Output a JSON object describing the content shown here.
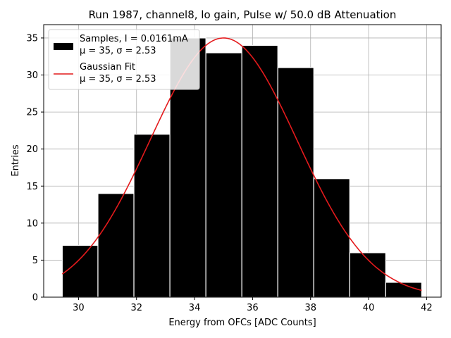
{
  "chart_data": {
    "type": "bar",
    "title": "Run 1987, channel8, lo gain, Pulse w/ 50.0 dB Attenuation",
    "xlabel": "Energy from OFCs [ADC Counts]",
    "ylabel": "Entries",
    "xlim": [
      28.8,
      42.5
    ],
    "ylim": [
      0,
      36.8
    ],
    "xticks": [
      30,
      32,
      34,
      36,
      38,
      40,
      42
    ],
    "yticks": [
      0,
      5,
      10,
      15,
      20,
      25,
      30,
      35
    ],
    "xtick_labels": [
      "30",
      "32",
      "34",
      "36",
      "38",
      "40",
      "42"
    ],
    "ytick_labels": [
      "0",
      "5",
      "10",
      "15",
      "20",
      "25",
      "30",
      "35"
    ],
    "grid": true,
    "legend_position": "top-left",
    "bins": [
      {
        "x0": 29.44,
        "x1": 30.67,
        "count": 7
      },
      {
        "x0": 30.67,
        "x1": 31.91,
        "count": 14
      },
      {
        "x0": 31.91,
        "x1": 33.15,
        "count": 22
      },
      {
        "x0": 33.15,
        "x1": 34.39,
        "count": 35
      },
      {
        "x0": 34.39,
        "x1": 35.63,
        "count": 33
      },
      {
        "x0": 35.63,
        "x1": 36.87,
        "count": 34
      },
      {
        "x0": 36.87,
        "x1": 38.11,
        "count": 31
      },
      {
        "x0": 38.11,
        "x1": 39.35,
        "count": 16
      },
      {
        "x0": 39.35,
        "x1": 40.59,
        "count": 6
      },
      {
        "x0": 40.59,
        "x1": 41.83,
        "count": 2
      }
    ],
    "series": [
      {
        "name": "Samples, I = 0.0161mA",
        "stats": "μ = 35, σ = 2.53",
        "kind": "histogram",
        "color": "#000000"
      },
      {
        "name": "Gaussian Fit",
        "stats": "μ = 35, σ = 2.53",
        "kind": "line",
        "color": "#e41a1c",
        "mu": 35,
        "sigma": 2.53,
        "amplitude": 35,
        "x_range": [
          29.44,
          41.83
        ]
      }
    ]
  }
}
